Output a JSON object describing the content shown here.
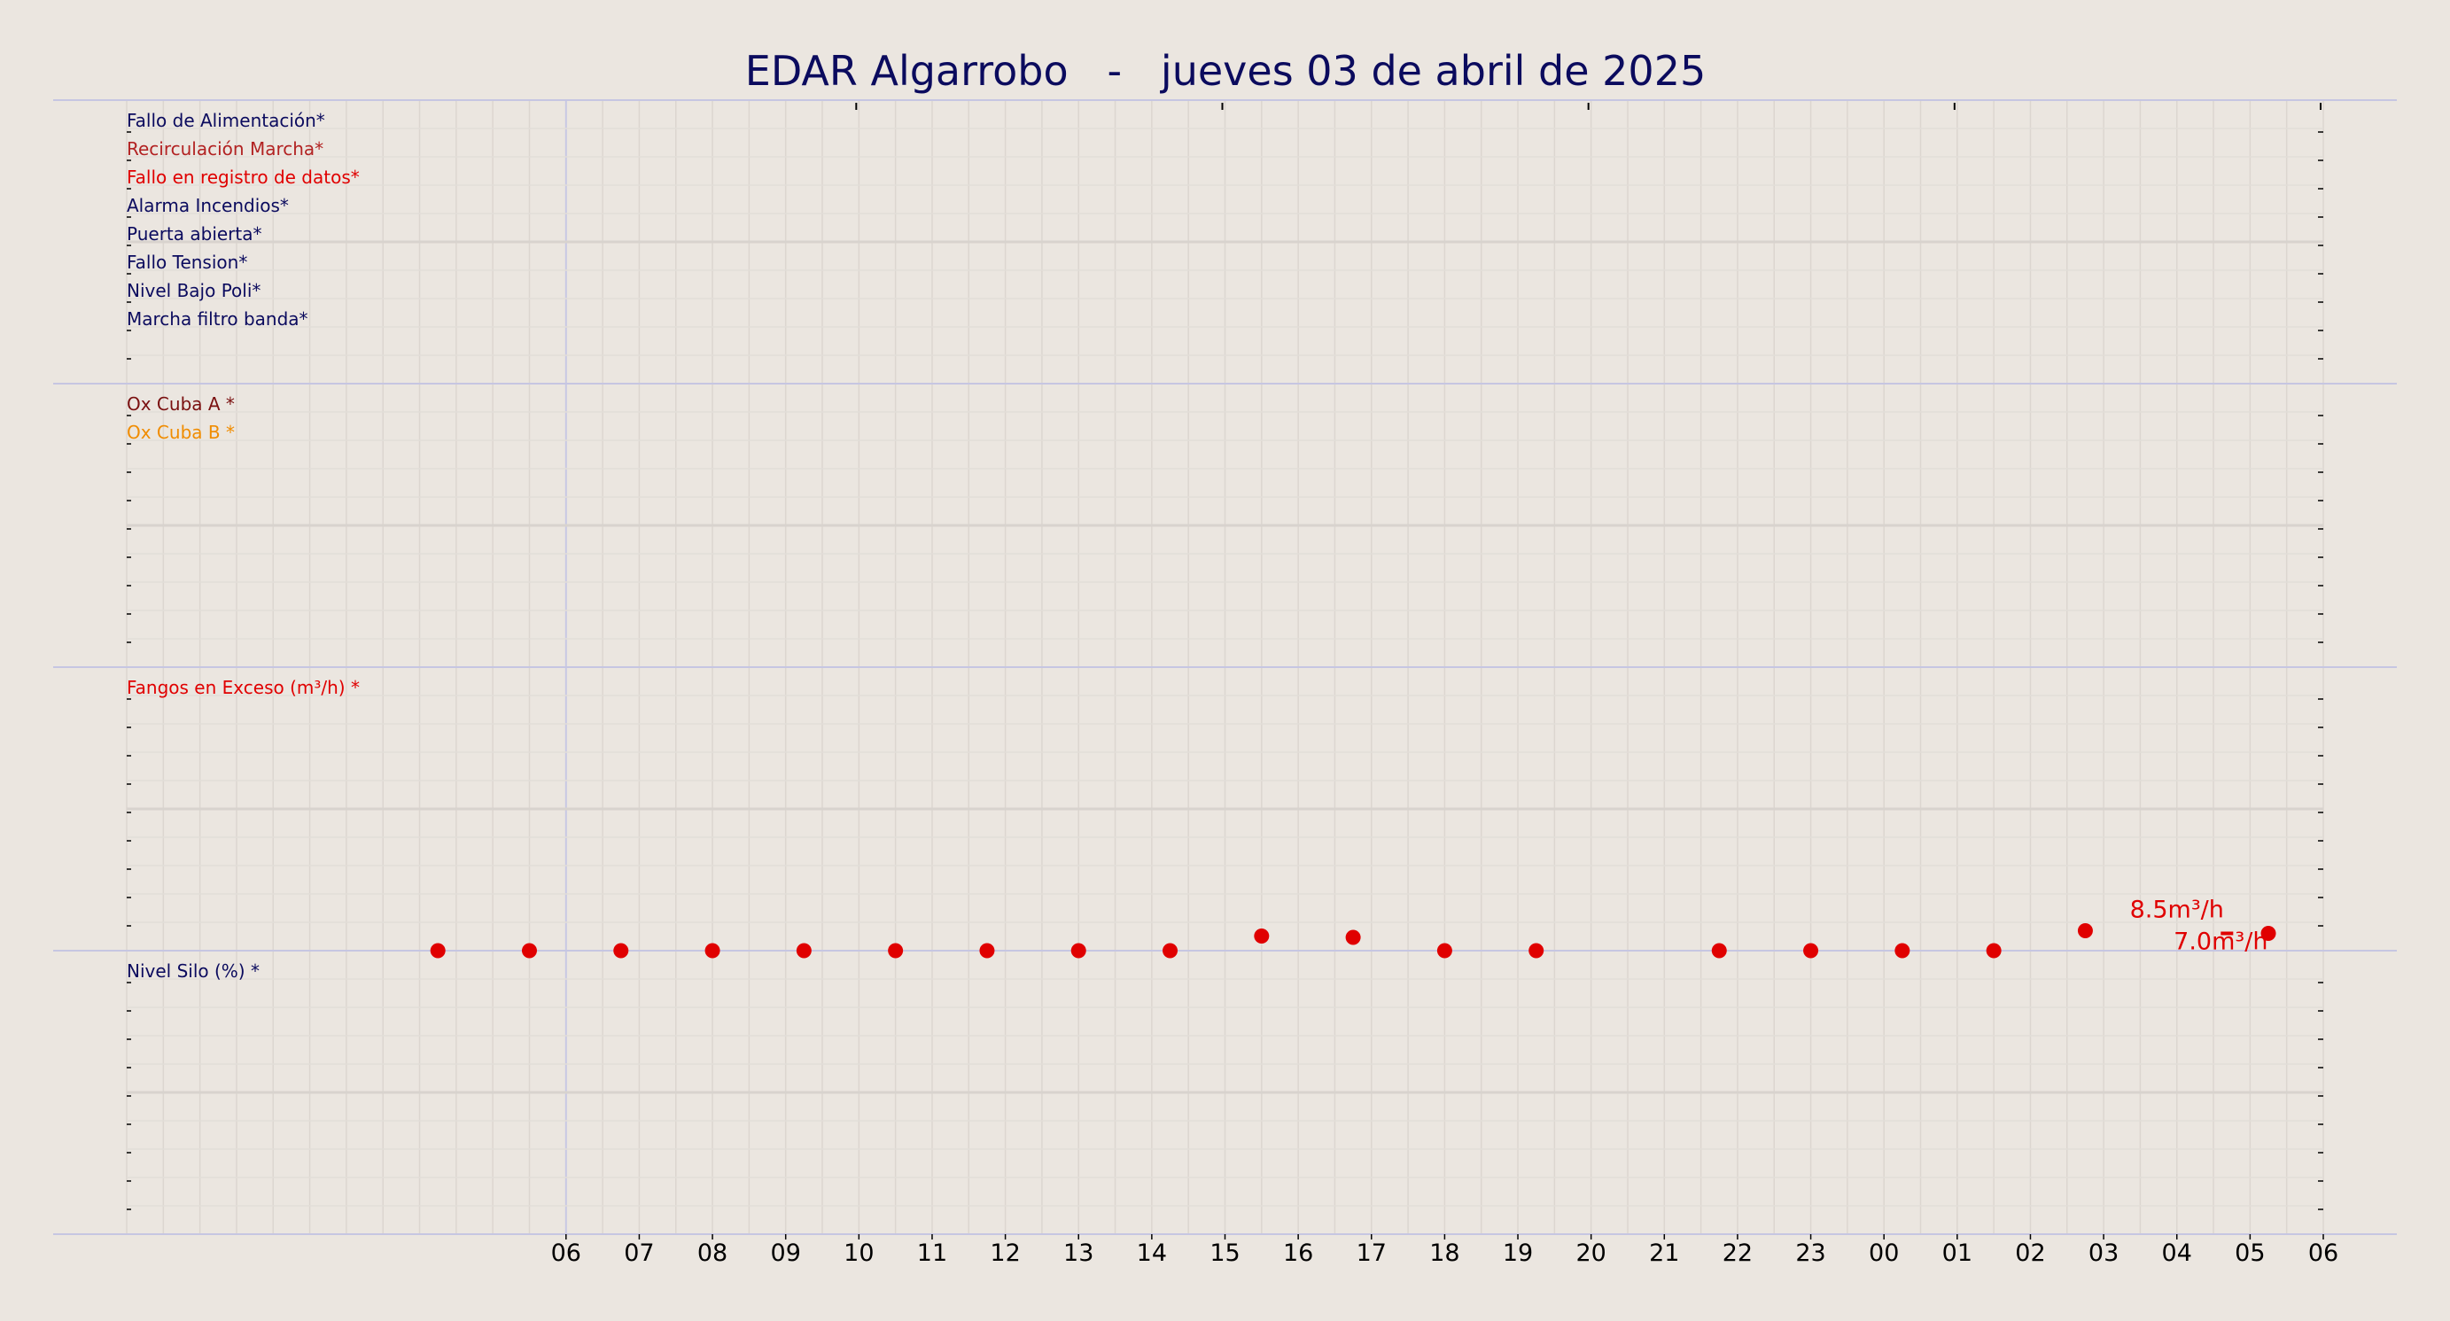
{
  "chart_data": {
    "type": "scatter",
    "title": "EDAR Algarrobo   -   jueves 03 de abril de 2025",
    "x_tick_labels": [
      "06",
      "07",
      "08",
      "09",
      "10",
      "11",
      "12",
      "13",
      "14",
      "15",
      "16",
      "17",
      "18",
      "19",
      "20",
      "21",
      "22",
      "23",
      "00",
      "01",
      "02",
      "03",
      "04",
      "05",
      "06"
    ],
    "grid": true,
    "panels": [
      {
        "name": "alarms",
        "labels": [
          {
            "text": "Fallo de Alimentación*",
            "color": "#0b0b5e"
          },
          {
            "text": "Recirculación Marcha*",
            "color": "#b22222"
          },
          {
            "text": "Fallo en registro de datos*",
            "color": "#e00000"
          },
          {
            "text": "Alarma Incendios*",
            "color": "#0b0b5e"
          },
          {
            "text": "Puerta abierta*",
            "color": "#0b0b5e"
          },
          {
            "text": "Fallo Tension*",
            "color": "#0b0b5e"
          },
          {
            "text": "Nivel Bajo Poli*",
            "color": "#0b0b5e"
          },
          {
            "text": "Marcha filtro banda*",
            "color": "#0b0b5e"
          }
        ]
      },
      {
        "name": "oxygen",
        "labels": [
          {
            "text": "Ox Cuba A *",
            "color": "#7a1010"
          },
          {
            "text": "Ox Cuba B *",
            "color": "#f08c00"
          }
        ]
      },
      {
        "name": "sludge",
        "labels": [
          {
            "text": "Fangos en Exceso (m³/h) *",
            "color": "#e00000"
          }
        ],
        "series": [
          {
            "color": "#e00000",
            "points": [
              {
                "x": 4.25,
                "y": 0
              },
              {
                "x": 5.5,
                "y": 0
              },
              {
                "x": 6.75,
                "y": 0
              },
              {
                "x": 8.0,
                "y": 0
              },
              {
                "x": 9.25,
                "y": 0
              },
              {
                "x": 10.5,
                "y": 0
              },
              {
                "x": 11.75,
                "y": 0
              },
              {
                "x": 13.0,
                "y": 0
              },
              {
                "x": 14.25,
                "y": 0
              },
              {
                "x": 15.5,
                "y": 0.55
              },
              {
                "x": 16.75,
                "y": 0.5
              },
              {
                "x": 18.0,
                "y": 0
              },
              {
                "x": 19.25,
                "y": 0
              },
              {
                "x": 21.75,
                "y": 0
              },
              {
                "x": 23.0,
                "y": 0
              },
              {
                "x": 24.25,
                "y": 0
              },
              {
                "x": 25.5,
                "y": 0
              },
              {
                "x": 26.75,
                "y": 0.75
              },
              {
                "x": 29.25,
                "y": 0.65
              }
            ]
          }
        ],
        "annotations": [
          {
            "text": "8.5m³/h",
            "x": 28.0,
            "y": 1.25
          },
          {
            "text": "7.0m³/h",
            "x": 28.6,
            "y": 0.05
          }
        ]
      },
      {
        "name": "silo",
        "labels": [
          {
            "text": "Nivel Silo (%) *",
            "color": "#0b0b5e"
          }
        ]
      }
    ]
  }
}
